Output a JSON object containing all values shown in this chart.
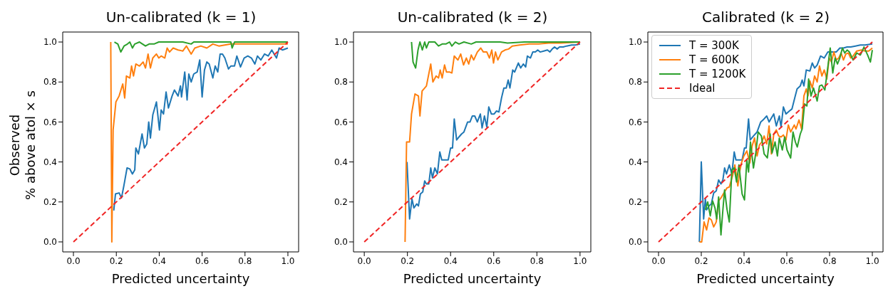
{
  "chart_data": [
    {
      "type": "line",
      "title": "Un-calibrated (k = 1)",
      "xlabel": "Predicted uncertainty",
      "ylabel": "Observed\n% above atol × s",
      "xlim": [
        -0.05,
        1.05
      ],
      "ylim": [
        -0.05,
        1.05
      ],
      "xticks": [
        {
          "value": 0,
          "label": "0.0"
        },
        {
          "value": 0.2,
          "label": "0.2"
        },
        {
          "value": 0.4,
          "label": "0.4"
        },
        {
          "value": 0.6,
          "label": "0.6"
        },
        {
          "value": 0.8,
          "label": "0.8"
        },
        {
          "value": 1,
          "label": "1.0"
        }
      ],
      "yticks": [
        {
          "value": 0,
          "label": "0.0"
        },
        {
          "value": 0.2,
          "label": "0.2"
        },
        {
          "value": 0.4,
          "label": "0.4"
        },
        {
          "value": 0.6,
          "label": "0.6"
        },
        {
          "value": 0.8,
          "label": "0.8"
        },
        {
          "value": 1,
          "label": "1.0"
        }
      ],
      "grid": false,
      "legend": false,
      "line_style": "solid",
      "series": [
        {
          "color": "#1f77b4",
          "x": [
            0.188,
            0.196,
            0.213,
            0.224,
            0.235,
            0.25,
            0.263,
            0.275,
            0.286,
            0.291,
            0.303,
            0.32,
            0.331,
            0.342,
            0.351,
            0.359,
            0.37,
            0.387,
            0.401,
            0.409,
            0.42,
            0.432,
            0.443,
            0.46,
            0.471,
            0.488,
            0.499,
            0.504,
            0.519,
            0.53,
            0.538,
            0.549,
            0.561,
            0.577,
            0.589,
            0.6,
            0.611,
            0.622,
            0.633,
            0.65,
            0.661,
            0.673,
            0.684,
            0.695,
            0.706,
            0.723,
            0.734,
            0.751,
            0.762,
            0.779,
            0.796,
            0.813,
            0.83,
            0.846,
            0.858,
            0.874,
            0.891,
            0.908,
            0.925,
            0.936,
            0.947,
            0.959,
            0.975,
            1.0
          ],
          "values": [
            0.157,
            0.24,
            0.245,
            0.22,
            0.28,
            0.37,
            0.365,
            0.34,
            0.36,
            0.47,
            0.44,
            0.54,
            0.47,
            0.49,
            0.6,
            0.52,
            0.635,
            0.7,
            0.56,
            0.66,
            0.64,
            0.75,
            0.67,
            0.73,
            0.76,
            0.73,
            0.78,
            0.725,
            0.85,
            0.71,
            0.84,
            0.8,
            0.84,
            0.85,
            0.91,
            0.725,
            0.86,
            0.9,
            0.89,
            0.82,
            0.88,
            0.85,
            0.94,
            0.94,
            0.92,
            0.865,
            0.88,
            0.88,
            0.93,
            0.875,
            0.92,
            0.93,
            0.92,
            0.89,
            0.93,
            0.91,
            0.94,
            0.93,
            0.96,
            0.94,
            0.92,
            0.97,
            0.96,
            0.97
          ]
        },
        {
          "color": "#ff7f0e",
          "x": [
            0.174,
            0.179,
            0.185,
            0.198,
            0.213,
            0.23,
            0.239,
            0.247,
            0.263,
            0.271,
            0.28,
            0.291,
            0.308,
            0.325,
            0.336,
            0.348,
            0.359,
            0.37,
            0.387,
            0.398,
            0.409,
            0.426,
            0.437,
            0.448,
            0.465,
            0.488,
            0.51,
            0.527,
            0.549,
            0.566,
            0.594,
            0.622,
            0.65,
            0.678,
            0.734,
            0.79,
            0.846,
            0.902,
            0.959,
            1.0
          ],
          "values": [
            1.0,
            0,
            0.56,
            0.7,
            0.73,
            0.79,
            0.72,
            0.83,
            0.82,
            0.88,
            0.83,
            0.89,
            0.88,
            0.9,
            0.87,
            0.94,
            0.87,
            0.92,
            0.94,
            0.92,
            0.93,
            0.92,
            0.97,
            0.95,
            0.97,
            0.96,
            0.955,
            0.98,
            0.94,
            0.97,
            0.98,
            0.97,
            0.99,
            0.98,
            0.99,
            0.99,
            0.99,
            0.99,
            0.99,
            0.99
          ]
        },
        {
          "color": "#2ca02c",
          "x": [
            0.191,
            0.207,
            0.221,
            0.236,
            0.252,
            0.263,
            0.275,
            0.286,
            0.308,
            0.336,
            0.353,
            0.376,
            0.398,
            0.454,
            0.51,
            0.549,
            0.561,
            0.734,
            0.74,
            0.751,
            0.846,
            1.0
          ],
          "values": [
            1.0,
            0.99,
            0.95,
            0.98,
            0.99,
            1.0,
            0.97,
            0.99,
            1.0,
            0.98,
            0.99,
            0.99,
            1.0,
            1.0,
            1.0,
            0.99,
            1.0,
            1.0,
            0.97,
            1.0,
            1.0,
            1.0
          ]
        },
        {
          "color": "#f02525",
          "line_style": "dashed",
          "x": [
            0,
            1
          ],
          "values": [
            0,
            1
          ]
        }
      ]
    },
    {
      "type": "line",
      "title": "Un-calibrated (k = 2)",
      "xlabel": "Predicted uncertainty",
      "xlim": [
        -0.05,
        1.05
      ],
      "ylim": [
        -0.05,
        1.05
      ],
      "xticks": [
        {
          "value": 0,
          "label": "0.0"
        },
        {
          "value": 0.2,
          "label": "0.2"
        },
        {
          "value": 0.4,
          "label": "0.4"
        },
        {
          "value": 0.6,
          "label": "0.6"
        },
        {
          "value": 0.8,
          "label": "0.8"
        },
        {
          "value": 1,
          "label": "1.0"
        }
      ],
      "yticks": [
        {
          "value": 0,
          "label": "0.0"
        },
        {
          "value": 0.2,
          "label": "0.2"
        },
        {
          "value": 0.4,
          "label": "0.4"
        },
        {
          "value": 0.6,
          "label": "0.6"
        },
        {
          "value": 0.8,
          "label": "0.8"
        },
        {
          "value": 1,
          "label": "1.0"
        }
      ],
      "grid": false,
      "legend": false,
      "line_style": "solid",
      "series": [
        {
          "color": "#1f77b4",
          "x": [
            0.198,
            0.21,
            0.221,
            0.23,
            0.243,
            0.251,
            0.26,
            0.271,
            0.28,
            0.288,
            0.299,
            0.308,
            0.316,
            0.327,
            0.339,
            0.35,
            0.359,
            0.378,
            0.389,
            0.4,
            0.409,
            0.417,
            0.428,
            0.439,
            0.451,
            0.462,
            0.479,
            0.49,
            0.501,
            0.512,
            0.524,
            0.538,
            0.546,
            0.557,
            0.568,
            0.577,
            0.589,
            0.602,
            0.613,
            0.624,
            0.636,
            0.647,
            0.658,
            0.667,
            0.675,
            0.688,
            0.697,
            0.714,
            0.725,
            0.737,
            0.748,
            0.756,
            0.77,
            0.781,
            0.793,
            0.804,
            0.815,
            0.832,
            0.849,
            0.86,
            0.871,
            0.882,
            0.894,
            0.905,
            0.922,
            0.938,
            0.961,
            0.978,
            1.0
          ],
          "values": [
            0.4,
            0.115,
            0.215,
            0.17,
            0.19,
            0.18,
            0.24,
            0.25,
            0.305,
            0.29,
            0.29,
            0.37,
            0.32,
            0.37,
            0.34,
            0.45,
            0.41,
            0.41,
            0.41,
            0.47,
            0.47,
            0.615,
            0.51,
            0.525,
            0.54,
            0.55,
            0.6,
            0.6,
            0.63,
            0.63,
            0.6,
            0.64,
            0.57,
            0.63,
            0.575,
            0.675,
            0.64,
            0.64,
            0.655,
            0.65,
            0.72,
            0.77,
            0.77,
            0.81,
            0.77,
            0.86,
            0.85,
            0.895,
            0.87,
            0.89,
            0.875,
            0.93,
            0.92,
            0.95,
            0.95,
            0.96,
            0.95,
            0.955,
            0.96,
            0.95,
            0.965,
            0.975,
            0.965,
            0.975,
            0.975,
            0.98,
            0.985,
            0.985,
            0.99
          ]
        },
        {
          "color": "#ff7f0e",
          "x": [
            0.189,
            0.196,
            0.21,
            0.219,
            0.235,
            0.251,
            0.258,
            0.268,
            0.288,
            0.308,
            0.318,
            0.333,
            0.344,
            0.352,
            0.361,
            0.372,
            0.381,
            0.395,
            0.406,
            0.417,
            0.434,
            0.447,
            0.46,
            0.473,
            0.484,
            0.496,
            0.507,
            0.524,
            0.54,
            0.552,
            0.568,
            0.58,
            0.591,
            0.599,
            0.608,
            0.619,
            0.636,
            0.652,
            0.669,
            0.686,
            0.72,
            0.765,
            0.809,
            0.854,
            0.91,
            1.0
          ],
          "values": [
            0,
            0.5,
            0.5,
            0.64,
            0.74,
            0.73,
            0.63,
            0.755,
            0.78,
            0.89,
            0.8,
            0.83,
            0.82,
            0.86,
            0.82,
            0.885,
            0.85,
            0.85,
            0.845,
            0.93,
            0.91,
            0.94,
            0.885,
            0.92,
            0.89,
            0.935,
            0.91,
            0.95,
            0.97,
            0.95,
            0.95,
            0.92,
            0.96,
            0.895,
            0.95,
            0.91,
            0.95,
            0.96,
            0.965,
            0.98,
            0.985,
            0.99,
            0.99,
            0.995,
            0.995,
            1.0
          ]
        },
        {
          "color": "#2ca02c",
          "x": [
            0.219,
            0.226,
            0.238,
            0.249,
            0.258,
            0.269,
            0.28,
            0.288,
            0.299,
            0.327,
            0.344,
            0.361,
            0.378,
            0.395,
            0.406,
            0.422,
            0.439,
            0.462,
            0.496,
            0.518,
            0.63,
            0.664,
            0.742,
            1.0
          ],
          "values": [
            1.0,
            0.9,
            0.87,
            0.96,
            1.0,
            0.96,
            1.0,
            0.97,
            1.0,
            1.0,
            0.98,
            0.99,
            0.99,
            1.0,
            0.98,
            1.0,
            0.99,
            1.0,
            0.99,
            1.0,
            1.0,
            0.995,
            1.0,
            1.0
          ]
        },
        {
          "color": "#f02525",
          "line_style": "dashed",
          "x": [
            0,
            1
          ],
          "values": [
            0,
            1
          ]
        }
      ]
    },
    {
      "type": "line",
      "title": "Calibrated (k = 2)",
      "xlabel": "Predicted uncertainty",
      "xlim": [
        -0.05,
        1.05
      ],
      "ylim": [
        -0.05,
        1.05
      ],
      "xticks": [
        {
          "value": 0,
          "label": "0.0"
        },
        {
          "value": 0.2,
          "label": "0.2"
        },
        {
          "value": 0.4,
          "label": "0.4"
        },
        {
          "value": 0.6,
          "label": "0.6"
        },
        {
          "value": 0.8,
          "label": "0.8"
        },
        {
          "value": 1,
          "label": "1.0"
        }
      ],
      "yticks": [
        {
          "value": 0,
          "label": "0.0"
        },
        {
          "value": 0.2,
          "label": "0.2"
        },
        {
          "value": 0.4,
          "label": "0.4"
        },
        {
          "value": 0.6,
          "label": "0.6"
        },
        {
          "value": 0.8,
          "label": "0.8"
        },
        {
          "value": 1,
          "label": "1.0"
        }
      ],
      "grid": false,
      "legend": "top left",
      "line_style": "solid",
      "series": [
        {
          "name": "T = 300K",
          "color": "#1f77b4",
          "x": [
            0.191,
            0.2,
            0.211,
            0.219,
            0.225,
            0.236,
            0.247,
            0.258,
            0.27,
            0.281,
            0.292,
            0.301,
            0.309,
            0.318,
            0.331,
            0.343,
            0.354,
            0.362,
            0.376,
            0.391,
            0.402,
            0.41,
            0.421,
            0.429,
            0.444,
            0.461,
            0.478,
            0.489,
            0.506,
            0.517,
            0.528,
            0.539,
            0.551,
            0.565,
            0.573,
            0.584,
            0.596,
            0.612,
            0.624,
            0.637,
            0.648,
            0.663,
            0.672,
            0.68,
            0.691,
            0.708,
            0.719,
            0.73,
            0.742,
            0.758,
            0.775,
            0.792,
            0.809,
            0.831,
            0.848,
            0.865,
            0.882,
            0.899,
            0.921,
            0.944,
            0.966,
            1.0
          ],
          "values": [
            0.0,
            0.4,
            0.115,
            0.215,
            0.16,
            0.18,
            0.19,
            0.245,
            0.255,
            0.31,
            0.29,
            0.31,
            0.37,
            0.34,
            0.385,
            0.34,
            0.45,
            0.41,
            0.41,
            0.41,
            0.47,
            0.47,
            0.615,
            0.51,
            0.53,
            0.55,
            0.6,
            0.61,
            0.63,
            0.6,
            0.62,
            0.64,
            0.58,
            0.63,
            0.575,
            0.675,
            0.64,
            0.655,
            0.665,
            0.72,
            0.765,
            0.78,
            0.81,
            0.78,
            0.86,
            0.855,
            0.895,
            0.87,
            0.885,
            0.93,
            0.92,
            0.95,
            0.95,
            0.95,
            0.97,
            0.97,
            0.975,
            0.975,
            0.98,
            0.985,
            0.985,
            0.99
          ]
        },
        {
          "name": "T = 600K",
          "color": "#ff7f0e",
          "x": [
            0.191,
            0.202,
            0.213,
            0.225,
            0.236,
            0.247,
            0.258,
            0.27,
            0.281,
            0.292,
            0.303,
            0.32,
            0.331,
            0.346,
            0.357,
            0.371,
            0.38,
            0.388,
            0.399,
            0.413,
            0.427,
            0.438,
            0.449,
            0.461,
            0.472,
            0.483,
            0.494,
            0.506,
            0.517,
            0.528,
            0.539,
            0.551,
            0.562,
            0.573,
            0.584,
            0.596,
            0.607,
            0.618,
            0.635,
            0.643,
            0.657,
            0.669,
            0.68,
            0.691,
            0.699,
            0.708,
            0.719,
            0.73,
            0.742,
            0.753,
            0.764,
            0.775,
            0.787,
            0.798,
            0.809,
            0.82,
            0.831,
            0.843,
            0.854,
            0.865,
            0.876,
            0.888,
            0.899,
            0.91,
            0.927,
            0.949,
            0.966,
            0.983,
            1.0
          ],
          "values": [
            0,
            0,
            0.1,
            0.06,
            0.12,
            0.11,
            0.075,
            0.1,
            0.205,
            0.22,
            0.24,
            0.27,
            0.275,
            0.33,
            0.385,
            0.28,
            0.355,
            0.395,
            0.43,
            0.455,
            0.395,
            0.48,
            0.52,
            0.43,
            0.485,
            0.5,
            0.53,
            0.49,
            0.58,
            0.44,
            0.54,
            0.56,
            0.53,
            0.525,
            0.535,
            0.51,
            0.585,
            0.55,
            0.585,
            0.565,
            0.61,
            0.565,
            0.73,
            0.765,
            0.73,
            0.805,
            0.77,
            0.83,
            0.8,
            0.88,
            0.83,
            0.86,
            0.815,
            0.92,
            0.9,
            0.95,
            0.91,
            0.92,
            0.945,
            0.91,
            0.94,
            0.945,
            0.92,
            0.93,
            0.955,
            0.96,
            0.955,
            0.955,
            0.97
          ]
        },
        {
          "name": "T = 1200K",
          "color": "#2ca02c",
          "x": [
            0.219,
            0.23,
            0.242,
            0.253,
            0.264,
            0.272,
            0.281,
            0.292,
            0.301,
            0.309,
            0.32,
            0.331,
            0.343,
            0.354,
            0.365,
            0.376,
            0.391,
            0.402,
            0.413,
            0.421,
            0.43,
            0.444,
            0.455,
            0.466,
            0.481,
            0.494,
            0.509,
            0.522,
            0.531,
            0.545,
            0.556,
            0.565,
            0.579,
            0.59,
            0.601,
            0.618,
            0.629,
            0.64,
            0.649,
            0.663,
            0.672,
            0.683,
            0.694,
            0.702,
            0.713,
            0.725,
            0.742,
            0.753,
            0.764,
            0.778,
            0.789,
            0.803,
            0.815,
            0.826,
            0.837,
            0.848,
            0.86,
            0.871,
            0.882,
            0.893,
            0.91,
            0.927,
            0.944,
            0.961,
            0.978,
            0.991,
            1.0
          ],
          "values": [
            0.16,
            0.2,
            0.13,
            0.205,
            0.17,
            0.115,
            0.225,
            0.035,
            0.16,
            0.26,
            0.165,
            0.1,
            0.36,
            0.37,
            0.3,
            0.385,
            0.24,
            0.21,
            0.41,
            0.35,
            0.5,
            0.37,
            0.445,
            0.55,
            0.53,
            0.44,
            0.42,
            0.54,
            0.445,
            0.5,
            0.43,
            0.52,
            0.46,
            0.525,
            0.46,
            0.42,
            0.55,
            0.5,
            0.475,
            0.54,
            0.565,
            0.69,
            0.68,
            0.815,
            0.73,
            0.77,
            0.705,
            0.78,
            0.785,
            0.76,
            0.85,
            0.97,
            0.845,
            0.92,
            0.89,
            0.92,
            0.97,
            0.945,
            0.96,
            0.95,
            0.91,
            0.945,
            0.935,
            0.975,
            0.935,
            0.9,
            0.96
          ]
        },
        {
          "name": "Ideal",
          "color": "#f02525",
          "line_style": "dashed",
          "x": [
            0,
            1
          ],
          "values": [
            0,
            1
          ]
        }
      ]
    }
  ]
}
